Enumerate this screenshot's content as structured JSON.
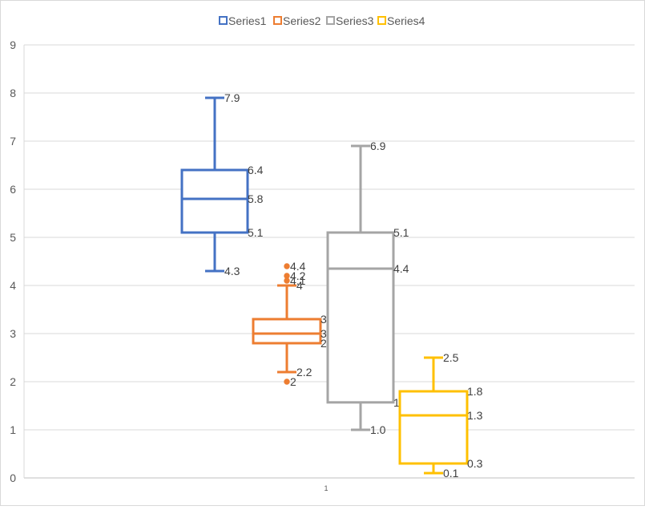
{
  "chart_data": {
    "type": "boxplot",
    "x_categories": [
      "1"
    ],
    "ylim": [
      0,
      9
    ],
    "yticks": [
      "0",
      "1",
      "2",
      "3",
      "4",
      "5",
      "6",
      "7",
      "8",
      "9"
    ],
    "grid": true,
    "legend": "top",
    "series": [
      {
        "name": "Series1",
        "color": "#4472c4",
        "min": 4.3,
        "q1": 5.1,
        "median": 5.8,
        "q3": 6.4,
        "max": 7.9,
        "outliers": [],
        "labels": {
          "min": "4.3",
          "q1": "5.1",
          "median": "5.8",
          "q3": "6.4",
          "max": "7.9"
        },
        "outlier_labels": []
      },
      {
        "name": "Series2",
        "color": "#ed7d31",
        "min": 2.2,
        "q1": 2.8,
        "median": 3.0,
        "q3": 3.3,
        "max": 4.0,
        "outliers": [
          2.0,
          4.1,
          4.2,
          4.4
        ],
        "labels": {
          "min": "2.2",
          "q1": "2.8",
          "median": "3",
          "q3": "3.3",
          "max": "4"
        },
        "outlier_labels": [
          "2",
          "4.1",
          "4.2",
          "4.4"
        ]
      },
      {
        "name": "Series3",
        "color": "#a5a5a5",
        "min": 1.0,
        "q1": 1.57,
        "median": 4.35,
        "q3": 5.1,
        "max": 6.9,
        "outliers": [],
        "labels": {
          "min": "1.0",
          "q1": "1.6",
          "median": "4.4",
          "q3": "5.1",
          "max": "6.9"
        },
        "outlier_labels": []
      },
      {
        "name": "Series4",
        "color": "#ffc000",
        "min": 0.1,
        "q1": 0.3,
        "median": 1.3,
        "q3": 1.8,
        "max": 2.5,
        "outliers": [],
        "labels": {
          "min": "0.1",
          "q1": "0.3",
          "median": "1.3",
          "q3": "1.8",
          "max": "2.5"
        },
        "outlier_labels": []
      }
    ]
  }
}
